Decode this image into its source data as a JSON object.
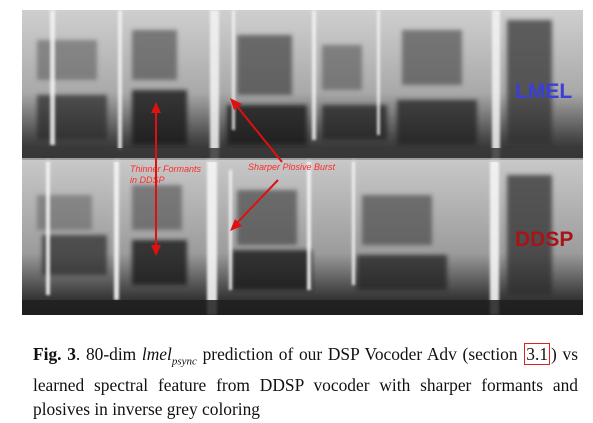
{
  "figure": {
    "top_panel_label": "LMEL",
    "bottom_panel_label": "DDSP",
    "colors": {
      "lmel_label": "#3a3fd6",
      "ddsp_label": "#a61418",
      "annotation": "#ff2a2a",
      "arrow": "#e01010"
    },
    "annotations": {
      "formants_line1": "Thinner Formants",
      "formants_line2": "in DDSP",
      "plosive": "Sharper Plosive Burst"
    }
  },
  "caption": {
    "fig_label": "Fig. 3",
    "sep": ". ",
    "part1": "80-dim ",
    "math_main": "lmel",
    "math_sub": "psync",
    "part2": " prediction of our DSP Vocoder Adv (section ",
    "ref": "3.1",
    "part3": ") vs learned spectral feature from DDSP vocoder with sharper formants and plosives in inverse grey coloring"
  }
}
